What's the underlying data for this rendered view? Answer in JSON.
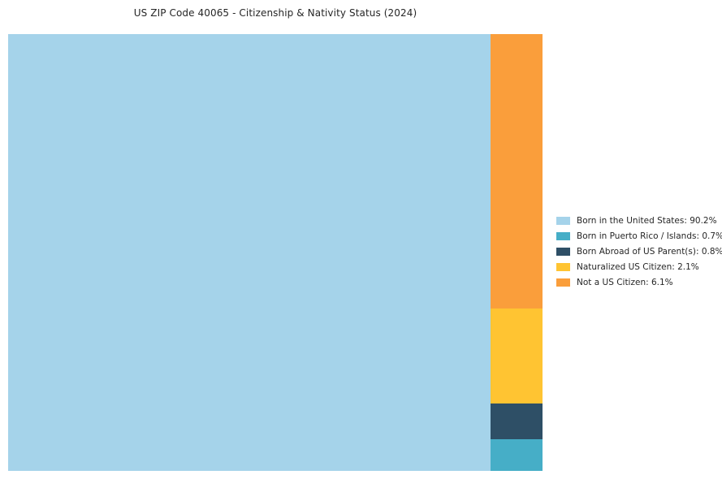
{
  "title": "US ZIP Code 40065 - Citizenship & Nativity Status (2024)",
  "chart_data": {
    "type": "treemap",
    "title": "US ZIP Code 40065 - Citizenship & Nativity Status (2024)",
    "categories": [
      "Born in the United States",
      "Born in Puerto Rico / Islands",
      "Born Abroad of US Parent(s)",
      "Naturalized US Citizen",
      "Not a US Citizen"
    ],
    "values": [
      90.2,
      0.7,
      0.8,
      2.1,
      6.1
    ],
    "colors": [
      "#A5D3EA",
      "#46AEC7",
      "#2E4F66",
      "#FFC432",
      "#FA9E3B"
    ],
    "legend_entries": [
      "Born in the United States: 90.2%",
      "Born in Puerto Rico / Islands: 0.7%",
      "Born Abroad of US Parent(s): 0.8%",
      "Naturalized US Citizen: 2.1%",
      "Not a US Citizen: 6.1%"
    ],
    "legend_position": "right",
    "layout": {
      "main_block_index": 0,
      "side_column_order_top_to_bottom": [
        4,
        3,
        2,
        1
      ]
    }
  }
}
